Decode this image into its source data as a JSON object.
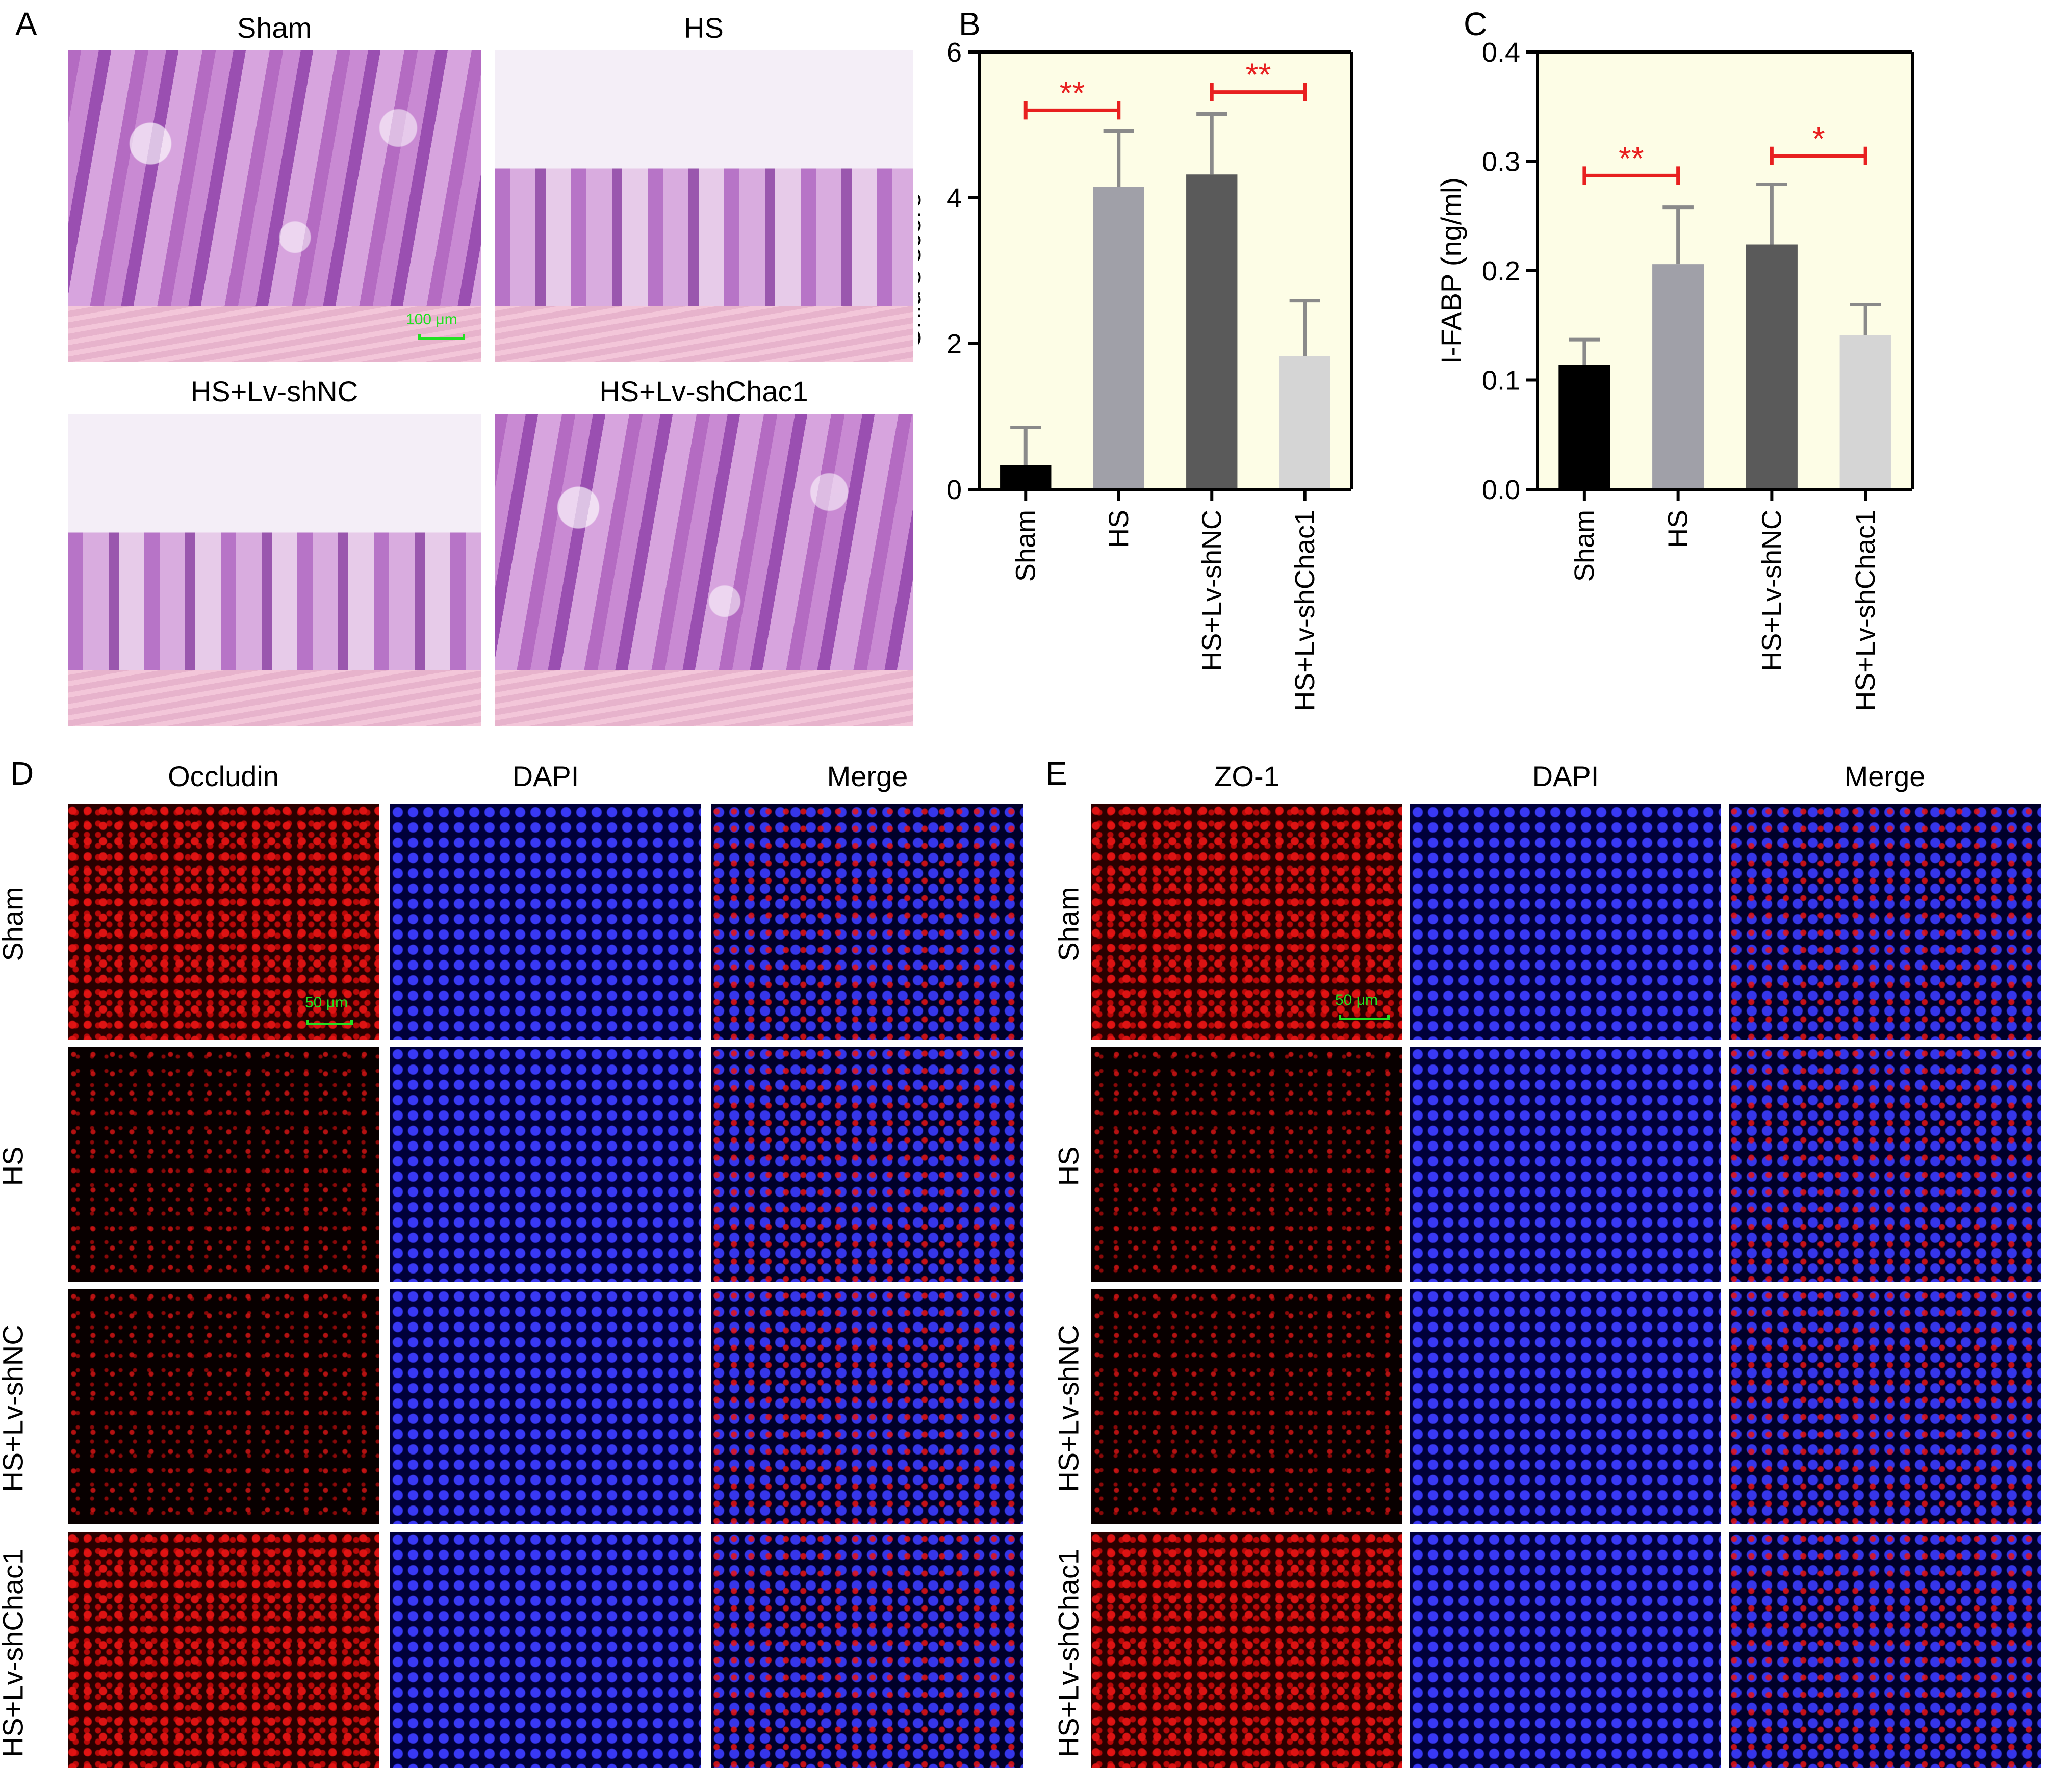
{
  "panel_letters": {
    "A": "A",
    "B": "B",
    "C": "C",
    "D": "D",
    "E": "E"
  },
  "panel_a": {
    "titles": [
      "Sham",
      "HS",
      "HS+Lv-shNC",
      "HS+Lv-shChac1"
    ],
    "scale_bar": "100 μm"
  },
  "panel_d": {
    "columns": [
      "Occludin",
      "DAPI",
      "Merge"
    ],
    "rows": [
      "Sham",
      "HS",
      "HS+Lv-shNC",
      "HS+Lv-shChac1"
    ],
    "scale_bar": "50 μm"
  },
  "panel_e": {
    "columns": [
      "ZO-1",
      "DAPI",
      "Merge"
    ],
    "rows": [
      "Sham",
      "HS",
      "HS+Lv-shNC",
      "HS+Lv-shChac1"
    ],
    "scale_bar": "50 μm"
  },
  "chart_data": [
    {
      "panel": "B",
      "type": "bar",
      "categories": [
        "Sham",
        "HS",
        "HS+Lv-shNC",
        "HS+Lv-shChac1"
      ],
      "values": [
        0.33,
        4.15,
        4.32,
        1.83
      ],
      "errors": [
        0.52,
        0.77,
        0.83,
        0.76
      ],
      "ylabel": "Chiu’s score",
      "ylim": [
        0,
        6
      ],
      "yticks": [
        "0",
        "2",
        "4",
        "6"
      ],
      "significance": [
        {
          "from": 0,
          "to": 1,
          "y": 5.2,
          "label": "**"
        },
        {
          "from": 2,
          "to": 3,
          "y": 5.45,
          "label": "**"
        }
      ],
      "colors": {
        "bars": [
          "#000000",
          "#a0a0a8",
          "#5a5a5a",
          "#d5d5d5"
        ],
        "background": "#fdfde6",
        "significance": "#e82020",
        "errorbar": "#8a8a8a"
      }
    },
    {
      "panel": "C",
      "type": "bar",
      "categories": [
        "Sham",
        "HS",
        "HS+Lv-shNC",
        "HS+Lv-shChac1"
      ],
      "values": [
        0.114,
        0.206,
        0.224,
        0.141
      ],
      "errors": [
        0.023,
        0.052,
        0.055,
        0.028
      ],
      "ylabel": "I-FABP (ng/ml)",
      "ylim": [
        0,
        0.4
      ],
      "yticks": [
        "0.0",
        "0.1",
        "0.2",
        "0.3",
        "0.4"
      ],
      "significance": [
        {
          "from": 0,
          "to": 1,
          "y": 0.287,
          "label": "**"
        },
        {
          "from": 2,
          "to": 3,
          "y": 0.305,
          "label": "*"
        }
      ],
      "colors": {
        "bars": [
          "#000000",
          "#a0a0a8",
          "#5a5a5a",
          "#d5d5d5"
        ],
        "background": "#fdfde6",
        "significance": "#e82020",
        "errorbar": "#8a8a8a"
      }
    }
  ]
}
